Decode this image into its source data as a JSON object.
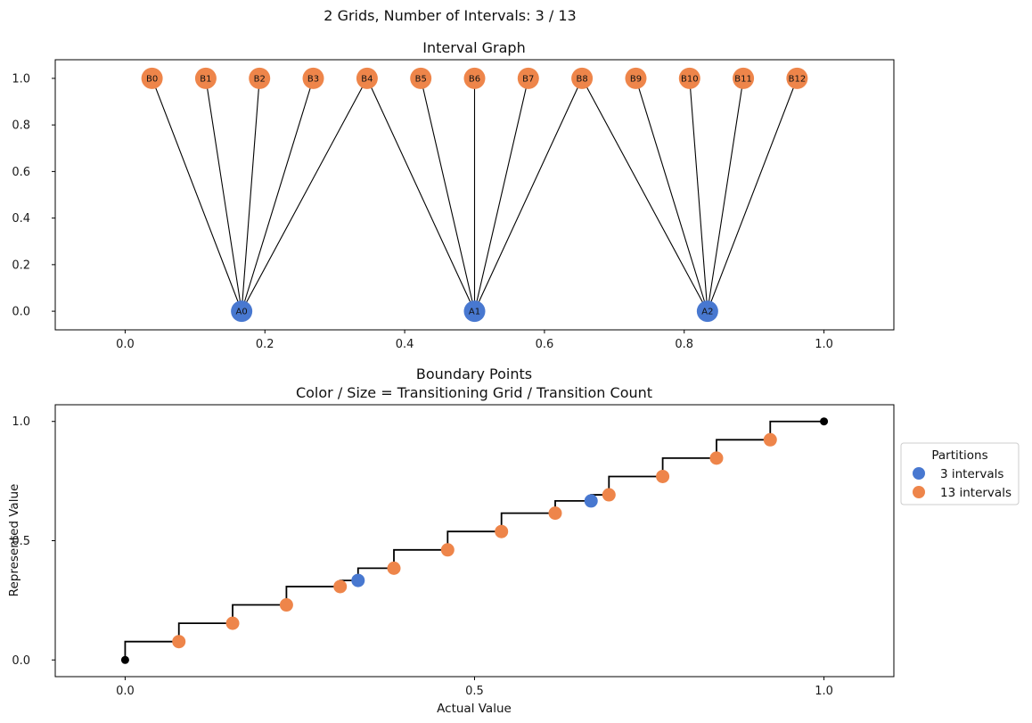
{
  "suptitle": "2 Grids, Number of Intervals: 3 / 13",
  "colors": {
    "grid_a": "#4878d0",
    "grid_b": "#ee854a",
    "endpoint": "#000000",
    "edge": "#000000"
  },
  "chart_data": [
    {
      "type": "network",
      "title": "Interval Graph",
      "xlim": [
        -0.1,
        1.1
      ],
      "ylim": [
        -0.08,
        1.08
      ],
      "xticks": [
        0.0,
        0.2,
        0.4,
        0.6,
        0.8,
        1.0
      ],
      "xtick_labels": [
        "0.0",
        "0.2",
        "0.4",
        "0.6",
        "0.8",
        "1.0"
      ],
      "yticks": [
        0.0,
        0.2,
        0.4,
        0.6,
        0.8,
        1.0
      ],
      "ytick_labels": [
        "0.0",
        "0.2",
        "0.4",
        "0.6",
        "0.8",
        "1.0"
      ],
      "nodes": [
        {
          "id": "A0",
          "x": 0.1667,
          "y": 0.0,
          "group": "grid_a"
        },
        {
          "id": "A1",
          "x": 0.5,
          "y": 0.0,
          "group": "grid_a"
        },
        {
          "id": "A2",
          "x": 0.8333,
          "y": 0.0,
          "group": "grid_a"
        },
        {
          "id": "B0",
          "x": 0.0385,
          "y": 1.0,
          "group": "grid_b"
        },
        {
          "id": "B1",
          "x": 0.1154,
          "y": 1.0,
          "group": "grid_b"
        },
        {
          "id": "B2",
          "x": 0.1923,
          "y": 1.0,
          "group": "grid_b"
        },
        {
          "id": "B3",
          "x": 0.2692,
          "y": 1.0,
          "group": "grid_b"
        },
        {
          "id": "B4",
          "x": 0.3462,
          "y": 1.0,
          "group": "grid_b"
        },
        {
          "id": "B5",
          "x": 0.4231,
          "y": 1.0,
          "group": "grid_b"
        },
        {
          "id": "B6",
          "x": 0.5,
          "y": 1.0,
          "group": "grid_b"
        },
        {
          "id": "B7",
          "x": 0.5769,
          "y": 1.0,
          "group": "grid_b"
        },
        {
          "id": "B8",
          "x": 0.6538,
          "y": 1.0,
          "group": "grid_b"
        },
        {
          "id": "B9",
          "x": 0.7308,
          "y": 1.0,
          "group": "grid_b"
        },
        {
          "id": "B10",
          "x": 0.8077,
          "y": 1.0,
          "group": "grid_b"
        },
        {
          "id": "B11",
          "x": 0.8846,
          "y": 1.0,
          "group": "grid_b"
        },
        {
          "id": "B12",
          "x": 0.9615,
          "y": 1.0,
          "group": "grid_b"
        }
      ],
      "edges": [
        [
          "A0",
          "B0"
        ],
        [
          "A0",
          "B1"
        ],
        [
          "A0",
          "B2"
        ],
        [
          "A0",
          "B3"
        ],
        [
          "A0",
          "B4"
        ],
        [
          "A1",
          "B4"
        ],
        [
          "A1",
          "B5"
        ],
        [
          "A1",
          "B6"
        ],
        [
          "A1",
          "B7"
        ],
        [
          "A1",
          "B8"
        ],
        [
          "A2",
          "B8"
        ],
        [
          "A2",
          "B9"
        ],
        [
          "A2",
          "B10"
        ],
        [
          "A2",
          "B11"
        ],
        [
          "A2",
          "B12"
        ]
      ]
    },
    {
      "type": "step",
      "title": "Boundary Points",
      "subtitle": "Color / Size = Transitioning Grid / Transition Count",
      "xlabel": "Actual Value",
      "ylabel": "Represented Value",
      "xlim": [
        -0.1,
        1.1
      ],
      "ylim": [
        -0.07,
        1.07
      ],
      "xticks": [
        0.0,
        0.5,
        1.0
      ],
      "xtick_labels": [
        "0.0",
        "0.5",
        "1.0"
      ],
      "yticks": [
        0.0,
        0.5,
        1.0
      ],
      "ytick_labels": [
        "0.0",
        "0.5",
        "1.0"
      ],
      "step_x": [
        0,
        0.0769,
        0.1538,
        0.2308,
        0.3077,
        0.3333,
        0.3846,
        0.4615,
        0.5385,
        0.6154,
        0.6667,
        0.6923,
        0.7692,
        0.8462,
        0.9231,
        1.0
      ],
      "step_y": [
        0,
        0.0769,
        0.1538,
        0.2308,
        0.3077,
        0.3333,
        0.3846,
        0.4615,
        0.5385,
        0.6154,
        0.6667,
        0.6923,
        0.7692,
        0.8462,
        0.9231,
        1.0
      ],
      "series": [
        {
          "name": "3 intervals",
          "color": "#4878d0",
          "x": [
            0.3333,
            0.6667
          ],
          "y": [
            0.3333,
            0.6667
          ]
        },
        {
          "name": "13 intervals",
          "color": "#ee854a",
          "x": [
            0.0769,
            0.1538,
            0.2308,
            0.3077,
            0.3846,
            0.4615,
            0.5385,
            0.6154,
            0.6923,
            0.7692,
            0.8462,
            0.9231
          ],
          "y": [
            0.0769,
            0.1538,
            0.2308,
            0.3077,
            0.3846,
            0.4615,
            0.5385,
            0.6154,
            0.6923,
            0.7692,
            0.8462,
            0.9231
          ]
        }
      ],
      "endpoints": {
        "x": [
          0.0,
          1.0
        ],
        "y": [
          0.0,
          1.0
        ]
      },
      "legend": {
        "title": "Partitions",
        "placement": "right-outside",
        "entries": [
          "3 intervals",
          "13 intervals"
        ]
      }
    }
  ]
}
